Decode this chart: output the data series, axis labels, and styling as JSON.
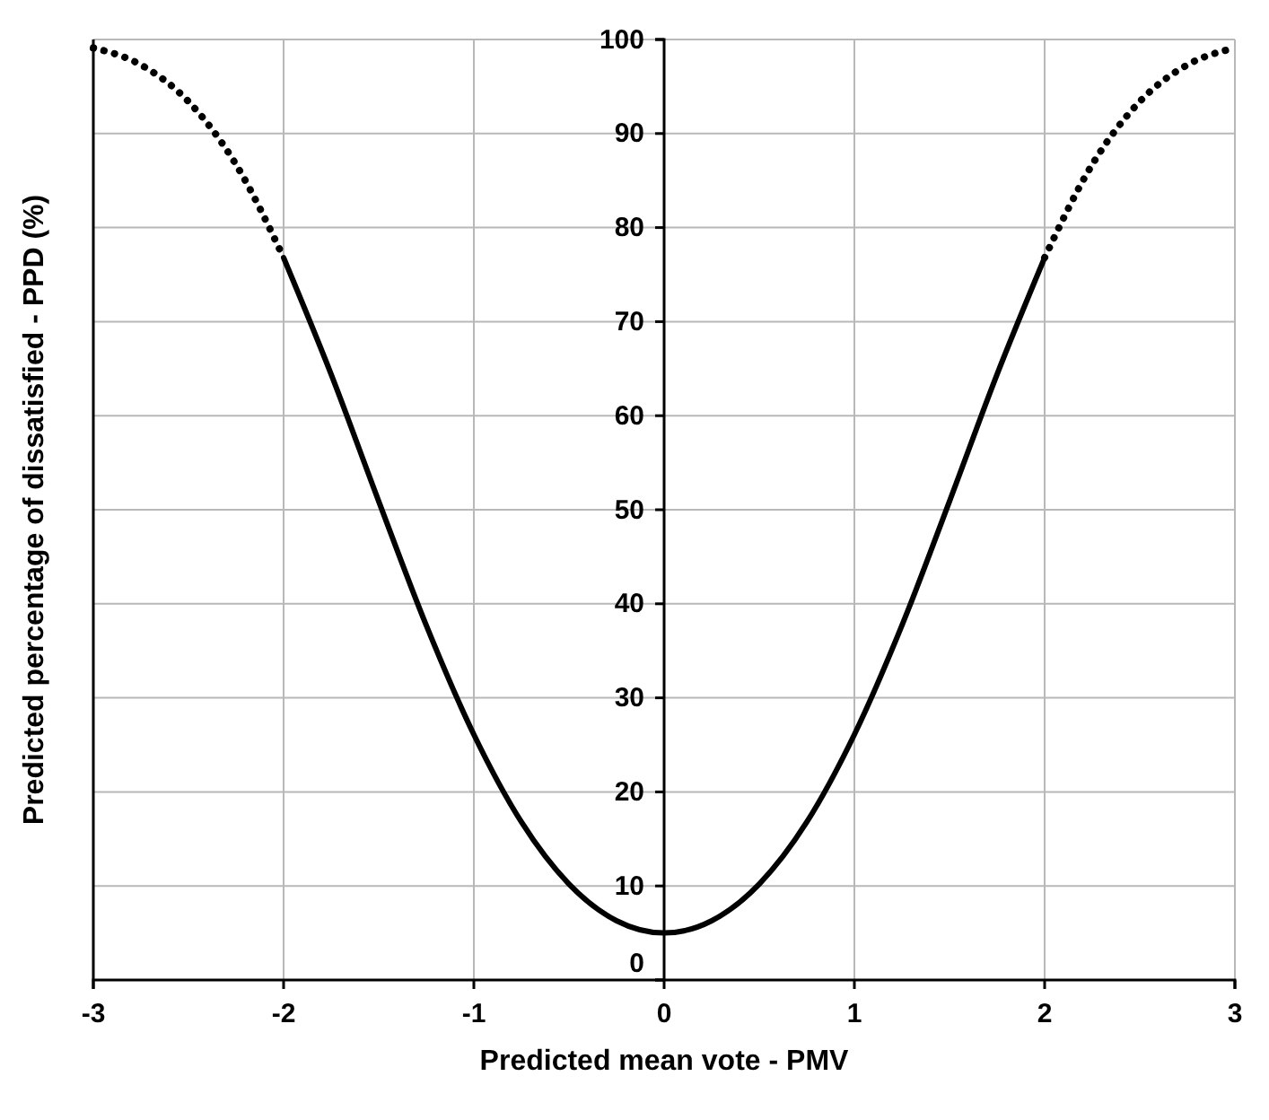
{
  "chart_data": {
    "type": "line",
    "xlabel": "Predicted mean vote - PMV",
    "ylabel": "Predicted percentage of dissatisfied - PPD (%)",
    "xlim": [
      -3,
      3
    ],
    "ylim": [
      0,
      100
    ],
    "xticks": [
      -3,
      -2,
      -1,
      0,
      1,
      2,
      3
    ],
    "yticks": [
      0,
      10,
      20,
      30,
      40,
      50,
      60,
      70,
      80,
      90,
      100
    ],
    "grid": true,
    "marker": "none",
    "series": [
      {
        "color": "#000000",
        "line_style": "dotted",
        "x": [
          -3,
          -2.75,
          -2.5,
          -2.25,
          -2
        ],
        "values": [
          99.1,
          97.3,
          93.4,
          86.7,
          76.8
        ]
      },
      {
        "color": "#000000",
        "line_style": "solid",
        "x": [
          -2,
          -1.75,
          -1.5,
          -1.25,
          -1,
          -0.75,
          -0.5,
          -0.25,
          0,
          0.25,
          0.5,
          0.75,
          1,
          1.25,
          1.5,
          1.75,
          2
        ],
        "values": [
          76.8,
          64.4,
          50.9,
          37.7,
          26.1,
          16.8,
          10.2,
          6.3,
          5,
          6.3,
          10.2,
          16.8,
          26.1,
          37.7,
          50.9,
          64.4,
          76.8
        ]
      },
      {
        "color": "#000000",
        "line_style": "dotted",
        "x": [
          2,
          2.25,
          2.5,
          2.75,
          3
        ],
        "values": [
          76.8,
          86.7,
          93.4,
          97.3,
          99.1
        ]
      }
    ]
  }
}
